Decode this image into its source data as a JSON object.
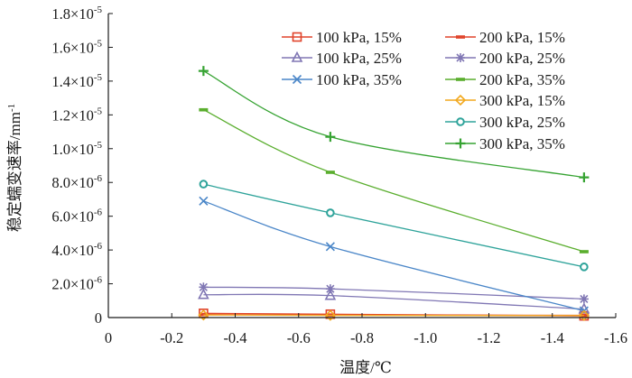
{
  "chart_data": {
    "type": "line",
    "xlabel": "温度/℃",
    "ylabel": "稳定蠕变速率/mm",
    "ylabel_superscript": "-1",
    "xlim": [
      0,
      -1.6
    ],
    "ylim": [
      0,
      1.8e-05
    ],
    "x_ticks": [
      "0",
      "-0.2",
      "-0.4",
      "-0.6",
      "-0.8",
      "-1.0",
      "-1.2",
      "-1.4",
      "-1.6"
    ],
    "y_ticks": [
      {
        "value": 0,
        "base": "0",
        "exp": ""
      },
      {
        "value": 2e-06,
        "base": "2.0×10",
        "exp": "-6"
      },
      {
        "value": 4e-06,
        "base": "4.0×10",
        "exp": "-6"
      },
      {
        "value": 6e-06,
        "base": "6.0×10",
        "exp": "-6"
      },
      {
        "value": 8e-06,
        "base": "8.0×10",
        "exp": "-6"
      },
      {
        "value": 1e-05,
        "base": "1.0×10",
        "exp": "-5"
      },
      {
        "value": 1.2e-05,
        "base": "1.2×10",
        "exp": "-5"
      },
      {
        "value": 1.4e-05,
        "base": "1.4×10",
        "exp": "-5"
      },
      {
        "value": 1.6e-05,
        "base": "1.6×10",
        "exp": "-5"
      },
      {
        "value": 1.8e-05,
        "base": "1.8×10",
        "exp": "-5"
      }
    ],
    "x": [
      -0.3,
      -0.7,
      -1.5
    ],
    "legend_position": "top-right",
    "series": [
      {
        "name": "100 kPa, 15%",
        "color": "#e0442b",
        "marker": "square",
        "values": [
          2.5e-07,
          2e-07,
          1e-07
        ]
      },
      {
        "name": "200 kPa, 15%",
        "color": "#e0442b",
        "marker": "dash",
        "values": [
          1.8e-07,
          1.5e-07,
          1.3e-07
        ]
      },
      {
        "name": "100 kPa, 25%",
        "color": "#8077b4",
        "marker": "triangle",
        "values": [
          1.35e-06,
          1.3e-06,
          5e-07
        ]
      },
      {
        "name": "200 kPa, 25%",
        "color": "#8077b4",
        "marker": "star",
        "values": [
          1.8e-06,
          1.7e-06,
          1.1e-06
        ]
      },
      {
        "name": "100 kPa, 35%",
        "color": "#4a86c8",
        "marker": "x",
        "values": [
          6.9e-06,
          4.2e-06,
          4e-07
        ]
      },
      {
        "name": "200 kPa, 35%",
        "color": "#5aae2e",
        "marker": "dash",
        "values": [
          1.23e-05,
          8.6e-06,
          3.9e-06
        ]
      },
      {
        "name": "300 kPa, 15%",
        "color": "#f2a91f",
        "marker": "diamond",
        "values": [
          1.5e-07,
          1.3e-07,
          1.2e-07
        ]
      },
      {
        "name": "300 kPa, 25%",
        "color": "#2ea39a",
        "marker": "circle",
        "values": [
          7.9e-06,
          6.2e-06,
          3e-06
        ]
      },
      {
        "name": "300 kPa, 35%",
        "color": "#36a332",
        "marker": "plus",
        "values": [
          1.46e-05,
          1.07e-05,
          8.3e-06
        ]
      }
    ]
  }
}
